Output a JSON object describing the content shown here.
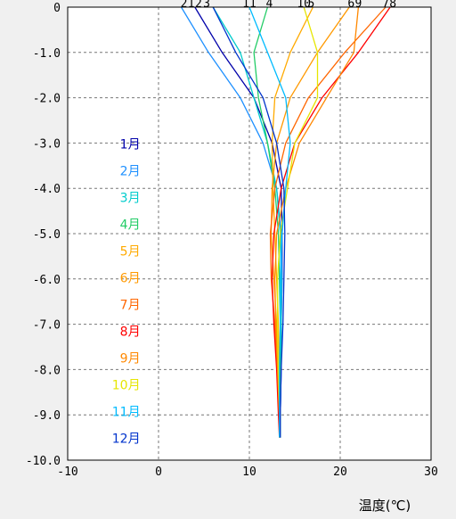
{
  "chart_data": {
    "type": "line",
    "title": "",
    "xlabel": "温度(℃)",
    "ylabel": "",
    "xlim": [
      -10,
      30
    ],
    "ylim": [
      -10.0,
      0
    ],
    "x_ticks": [
      "-10",
      "0",
      "10",
      "20",
      "30"
    ],
    "y_ticks": [
      "0",
      "-1.0",
      "-2.0",
      "-3.0",
      "-4.0",
      "-5.0",
      "-6.0",
      "-7.0",
      "-8.0",
      "-9.0",
      "-10.0"
    ],
    "top_labels": [
      {
        "text": "2",
        "x": 2.8,
        "color": "#0033cc"
      },
      {
        "text": "1",
        "x": 3.6,
        "color": "#0000aa"
      },
      {
        "text": "2",
        "x": 4.4,
        "color": "#1e90ff"
      },
      {
        "text": "3",
        "x": 5.3,
        "color": "#00cccc"
      },
      {
        "text": "11",
        "x": 10.0,
        "color": "#00bbff"
      },
      {
        "text": "4",
        "x": 12.2,
        "color": "#22cc66"
      },
      {
        "text": "10",
        "x": 16.0,
        "color": "#e6e600"
      },
      {
        "text": "5",
        "x": 16.8,
        "color": "#ffaa00"
      },
      {
        "text": "9",
        "x": 22.0,
        "color": "#ff8800"
      },
      {
        "text": "6",
        "x": 21.2,
        "color": "#ffaa33"
      },
      {
        "text": "7",
        "x": 25.0,
        "color": "#ff6600"
      },
      {
        "text": "8",
        "x": 25.8,
        "color": "#ff0000"
      }
    ],
    "grid": true,
    "legend_position": "left",
    "series": [
      {
        "name": "1月",
        "color": "#0000aa",
        "depth": [
          0,
          -1,
          -2,
          -3,
          -4,
          -5,
          -6,
          -7,
          -8,
          -9,
          -9.5
        ],
        "temp": [
          4.0,
          7.0,
          10.5,
          12.5,
          13.5,
          13.6,
          13.6,
          13.5,
          13.5,
          13.4,
          13.4
        ]
      },
      {
        "name": "2月",
        "color": "#1e90ff",
        "depth": [
          0,
          -1,
          -2,
          -3,
          -4,
          -5,
          -6,
          -7,
          -8,
          -9,
          -9.5
        ],
        "temp": [
          2.5,
          5.5,
          9.0,
          11.5,
          13.0,
          13.5,
          13.6,
          13.5,
          13.5,
          13.4,
          13.4
        ]
      },
      {
        "name": "3月",
        "color": "#00cccc",
        "depth": [
          0,
          -1,
          -2,
          -3,
          -4,
          -5,
          -6,
          -7,
          -8,
          -9,
          -9.5
        ],
        "temp": [
          6.0,
          9.0,
          10.5,
          12.0,
          13.0,
          13.4,
          13.5,
          13.5,
          13.4,
          13.4,
          13.4
        ]
      },
      {
        "name": "4月",
        "color": "#22cc66",
        "depth": [
          0,
          -1,
          -2,
          -3,
          -4,
          -5,
          -6,
          -7,
          -8,
          -9,
          -9.5
        ],
        "temp": [
          12.0,
          10.5,
          11.0,
          12.0,
          12.8,
          13.2,
          13.3,
          13.4,
          13.4,
          13.4,
          13.4
        ]
      },
      {
        "name": "5月",
        "color": "#ffaa00",
        "depth": [
          0,
          -1,
          -2,
          -3,
          -4,
          -5,
          -6,
          -7,
          -8,
          -9,
          -9.5
        ],
        "temp": [
          17.0,
          14.5,
          12.8,
          12.5,
          12.6,
          12.8,
          13.0,
          13.2,
          13.3,
          13.3,
          13.3
        ]
      },
      {
        "name": "6月",
        "color": "#ff9900",
        "depth": [
          0,
          -1,
          -2,
          -3,
          -4,
          -5,
          -6,
          -7,
          -8,
          -9,
          -9.5
        ],
        "temp": [
          21.0,
          17.5,
          14.5,
          13.0,
          12.5,
          12.4,
          12.7,
          13.0,
          13.2,
          13.3,
          13.3
        ]
      },
      {
        "name": "7月",
        "color": "#ff6600",
        "depth": [
          0,
          -1,
          -2,
          -3,
          -4,
          -5,
          -6,
          -7,
          -8,
          -9,
          -9.5
        ],
        "temp": [
          25.0,
          20.5,
          16.5,
          14.0,
          12.8,
          12.3,
          12.4,
          12.8,
          13.1,
          13.3,
          13.3
        ]
      },
      {
        "name": "8月",
        "color": "#ff0000",
        "depth": [
          0,
          -1,
          -2,
          -3,
          -4,
          -5,
          -6,
          -7,
          -8,
          -9,
          -9.5
        ],
        "temp": [
          25.5,
          22.0,
          18.0,
          15.0,
          13.5,
          12.7,
          12.5,
          12.7,
          13.0,
          13.2,
          13.3
        ]
      },
      {
        "name": "9月",
        "color": "#ff8800",
        "depth": [
          0,
          -1,
          -2,
          -3,
          -4,
          -5,
          -6,
          -7,
          -8,
          -9,
          -9.5
        ],
        "temp": [
          22.0,
          21.5,
          18.5,
          15.5,
          14.0,
          13.0,
          12.8,
          12.9,
          13.1,
          13.3,
          13.3
        ]
      },
      {
        "name": "10月",
        "color": "#e6e600",
        "depth": [
          0,
          -1,
          -2,
          -3,
          -4,
          -5,
          -6,
          -7,
          -8,
          -9,
          -9.5
        ],
        "temp": [
          16.0,
          17.5,
          17.5,
          15.0,
          14.2,
          13.4,
          13.1,
          13.1,
          13.2,
          13.3,
          13.3
        ]
      },
      {
        "name": "11月",
        "color": "#00bbff",
        "depth": [
          0,
          -1,
          -2,
          -3,
          -4,
          -5,
          -6,
          -7,
          -8,
          -9,
          -9.5
        ],
        "temp": [
          10.0,
          12.0,
          14.0,
          14.5,
          14.0,
          13.6,
          13.4,
          13.4,
          13.3,
          13.3,
          13.3
        ]
      },
      {
        "name": "12月",
        "color": "#0033cc",
        "depth": [
          0,
          -1,
          -2,
          -3,
          -4,
          -5,
          -6,
          -7,
          -8,
          -9,
          -9.5
        ],
        "temp": [
          6.0,
          8.5,
          11.5,
          13.0,
          13.8,
          13.9,
          13.8,
          13.7,
          13.5,
          13.4,
          13.4
        ]
      }
    ]
  }
}
